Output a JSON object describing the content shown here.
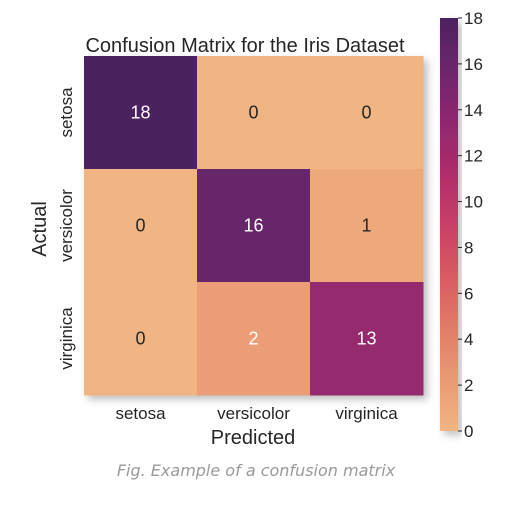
{
  "caption": "Fig. Example of a confusion matrix",
  "chart_data": {
    "type": "heatmap",
    "title": "Confusion Matrix for the Iris Dataset",
    "xlabel": "Predicted",
    "ylabel": "Actual",
    "x_categories": [
      "setosa",
      "versicolor",
      "virginica"
    ],
    "y_categories": [
      "setosa",
      "versicolor",
      "virginica"
    ],
    "values": [
      [
        18,
        0,
        0
      ],
      [
        0,
        16,
        1
      ],
      [
        0,
        2,
        13
      ]
    ],
    "colorbar": {
      "range": [
        0,
        18
      ],
      "ticks": [
        0,
        2,
        4,
        6,
        8,
        10,
        12,
        14,
        16,
        18
      ],
      "colormap": [
        "#f0b583",
        "#e99a74",
        "#e17c67",
        "#d85b62",
        "#c83f67",
        "#ae2d6b",
        "#8f286f",
        "#6c266b",
        "#4b2360"
      ]
    },
    "colors": {
      "text_light": "#ffffff",
      "text_dark": "#262626"
    }
  }
}
